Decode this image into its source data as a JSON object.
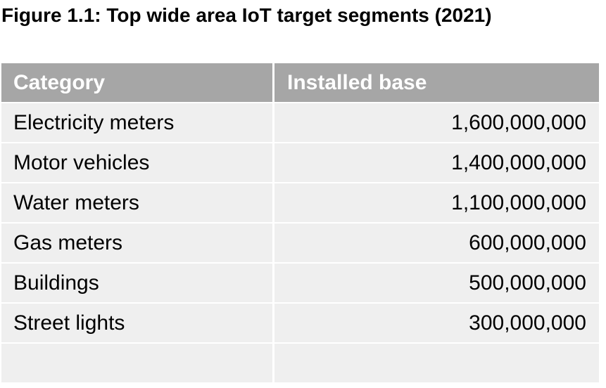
{
  "title": "Figure 1.1: Top wide area IoT target segments (2021)",
  "table": {
    "header": [
      "Category",
      "Installed base"
    ],
    "rows": [
      [
        "Electricity meters",
        "1,600,000,000"
      ],
      [
        "Motor vehicles",
        "1,400,000,000"
      ],
      [
        "Water meters",
        "1,100,000,000"
      ],
      [
        "Gas meters",
        "600,000,000"
      ],
      [
        "Buildings",
        "500,000,000"
      ],
      [
        "Street lights",
        "300,000,000"
      ]
    ]
  }
}
